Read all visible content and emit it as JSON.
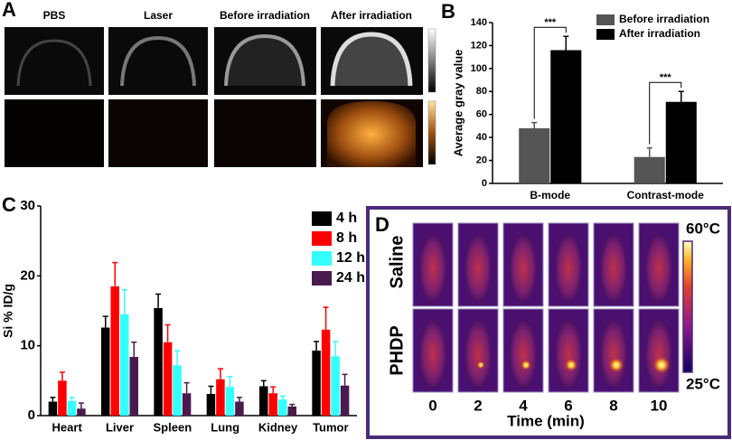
{
  "panel_labels": [
    "A",
    "B",
    "C",
    "D"
  ],
  "panel_a": {
    "columns": [
      "PBS",
      "Laser",
      "Before irradiation",
      "After irradiation"
    ]
  },
  "chart_data": [
    {
      "type": "bar",
      "ylabel": "Average gray value",
      "categories": [
        "B-mode",
        "Contrast-mode"
      ],
      "series": [
        {
          "name": "Before irradiation",
          "color": "#555555",
          "values": [
            48,
            23
          ],
          "errors": [
            5,
            8
          ]
        },
        {
          "name": "After irradiation",
          "color": "#000000",
          "values": [
            116,
            71
          ],
          "errors": [
            12,
            9
          ]
        }
      ],
      "annotations": [
        "***",
        "***"
      ],
      "ylim": [
        0,
        140
      ],
      "yticks": [
        0,
        20,
        40,
        60,
        80,
        100,
        120,
        140
      ],
      "legend": "upper right"
    },
    {
      "type": "bar",
      "ylabel": "Si % ID/g",
      "categories": [
        "Heart",
        "Liver",
        "Spleen",
        "Lung",
        "Kidney",
        "Tumor"
      ],
      "series": [
        {
          "name": "4 h",
          "color": "#000000",
          "values": [
            2.0,
            12.6,
            15.4,
            3.1,
            4.2,
            9.3
          ],
          "errors": [
            0.6,
            1.6,
            2.0,
            1.1,
            0.8,
            1.3
          ]
        },
        {
          "name": "8 h",
          "color": "#ff0000",
          "values": [
            5.0,
            18.5,
            10.5,
            5.2,
            3.2,
            12.3
          ],
          "errors": [
            1.2,
            3.4,
            2.5,
            1.5,
            0.9,
            3.2
          ]
        },
        {
          "name": "12 h",
          "color": "#33ffff",
          "values": [
            2.1,
            14.5,
            7.2,
            4.1,
            2.3,
            8.5
          ],
          "errors": [
            0.5,
            3.5,
            2.1,
            1.5,
            0.5,
            2.1
          ]
        },
        {
          "name": "24 h",
          "color": "#4a1a4e",
          "values": [
            1.0,
            8.4,
            3.2,
            2.0,
            1.3,
            4.3
          ],
          "errors": [
            0.8,
            2.1,
            1.5,
            0.6,
            0.3,
            1.6
          ]
        }
      ],
      "ylim": [
        0,
        30
      ],
      "yticks": [
        0,
        10,
        20,
        30
      ],
      "legend": "upper right"
    }
  ],
  "panel_d": {
    "rows": [
      "Saline",
      "PHDP"
    ],
    "times": [
      0,
      2,
      4,
      6,
      8,
      10
    ],
    "xlabel": "Time (min)",
    "colorbar_max": "60°C",
    "colorbar_min": "25°C"
  }
}
